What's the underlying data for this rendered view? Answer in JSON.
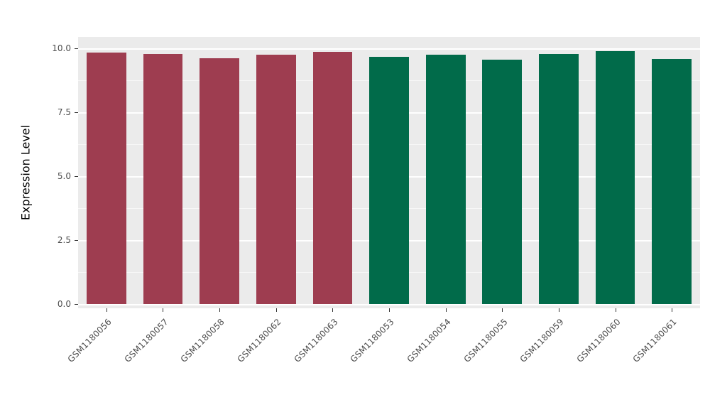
{
  "chart_data": {
    "type": "bar",
    "title": "",
    "xlabel": "",
    "ylabel": "Expression Level",
    "ylim": [
      0,
      10
    ],
    "grid": "on",
    "legend_position": "none",
    "panel_background": "#EBEBEB",
    "gridline_color": "#FFFFFF",
    "y_ticks": [
      {
        "value": 0,
        "label": "0.0"
      },
      {
        "value": 2.5,
        "label": "2.5"
      },
      {
        "value": 5,
        "label": "5.0"
      },
      {
        "value": 7.5,
        "label": "7.5"
      },
      {
        "value": 10,
        "label": "10.0"
      }
    ],
    "y_minor_ticks": [
      1.25,
      3.75,
      6.25,
      8.75
    ],
    "categories": [
      "GSM1180056",
      "GSM1180057",
      "GSM1180058",
      "GSM1180062",
      "GSM1180063",
      "GSM1180053",
      "GSM1180054",
      "GSM1180055",
      "GSM1180059",
      "GSM1180060",
      "GSM1180061"
    ],
    "values": [
      9.82,
      9.78,
      9.62,
      9.76,
      9.86,
      9.68,
      9.76,
      9.56,
      9.78,
      9.88,
      9.58
    ],
    "bar_colors": [
      "#9E3D50",
      "#9E3D50",
      "#9E3D50",
      "#9E3D50",
      "#9E3D50",
      "#016B4A",
      "#016B4A",
      "#016B4A",
      "#016B4A",
      "#016B4A",
      "#016B4A"
    ],
    "group_colors": {
      "group_red": "#9E3D50",
      "group_green": "#016B4A"
    }
  }
}
